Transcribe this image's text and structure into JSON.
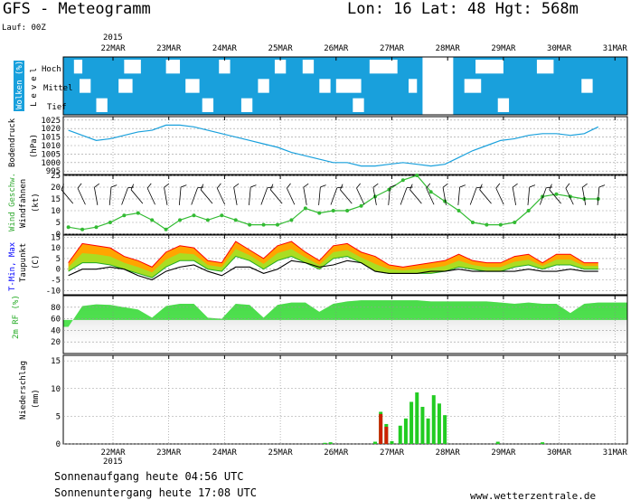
{
  "header": {
    "title": "GFS - Meteogramm",
    "location": "Lon: 16 Lat: 48 Hgt: 568m",
    "run": "Lauf: 00Z",
    "year": "2015"
  },
  "dates": [
    "22MAR",
    "23MAR",
    "24MAR",
    "25MAR",
    "26MAR",
    "27MAR",
    "28MAR",
    "29MAR",
    "30MAR",
    "31MAR"
  ],
  "footer": {
    "sunrise": "Sonnenaufgang heute 04:56 UTC",
    "sunset": "Sonnenuntergang heute 17:08 UTC",
    "website": "www.wetterzentrale.de",
    "year": "2015"
  },
  "colors": {
    "cloud_blue": "#19a0dc",
    "pressure_line": "#19a0dc",
    "wind_green": "#33bb33",
    "humidity_green": "#33dd33",
    "precip_green": "#22cc22",
    "precip_red": "#cc2200",
    "temp_orange": "#ffa500",
    "temp_red": "#ff0000",
    "temp_yellowgreen": "#aadd22",
    "label_blue": "#0000ff"
  },
  "chart_data": [
    {
      "type": "heatmap",
      "panel": "clouds",
      "ylabel": "Wolken (%)",
      "side_label": "Level",
      "rows": [
        "Hoch",
        "Mittel",
        "Tief"
      ]
    },
    {
      "type": "line",
      "panel": "pressure",
      "ylabel": "Bodendruck",
      "unit": "(hPa)",
      "ylim": [
        995,
        1025
      ],
      "ticks": [
        "1025",
        "1020",
        "1015",
        "1010",
        "1005",
        "1000",
        "995"
      ],
      "x_days": [
        0,
        0.25,
        0.5,
        0.75,
        1,
        1.25,
        1.5,
        1.75,
        2,
        2.25,
        2.5,
        2.75,
        3,
        3.25,
        3.5,
        3.75,
        4,
        4.25,
        4.5,
        4.75,
        5,
        5.25,
        5.5,
        5.75,
        6,
        6.25,
        6.5,
        6.75,
        7,
        7.25,
        7.5,
        7.75,
        8,
        8.25,
        8.5,
        8.75,
        9,
        9.25,
        9.5
      ],
      "values": [
        1019,
        1016,
        1013,
        1014,
        1016,
        1018,
        1019,
        1022,
        1022,
        1021,
        1019,
        1017,
        1015,
        1013,
        1011,
        1009,
        1006,
        1004,
        1002,
        1000,
        1000,
        998,
        998,
        999,
        1000,
        999,
        998,
        999,
        1003,
        1007,
        1010,
        1013,
        1014,
        1016,
        1017,
        1017,
        1016,
        1017,
        1021
      ]
    },
    {
      "type": "line",
      "panel": "wind",
      "ylabel": "Wind Geschw.",
      "ylabel2": "Windfahnen",
      "unit": "(kt)",
      "ylim": [
        0,
        25
      ],
      "ticks": [
        "25",
        "20",
        "15",
        "10",
        "5",
        "0"
      ],
      "x_days": [
        0,
        0.25,
        0.5,
        0.75,
        1,
        1.25,
        1.5,
        1.75,
        2,
        2.25,
        2.5,
        2.75,
        3,
        3.25,
        3.5,
        3.75,
        4,
        4.25,
        4.5,
        4.75,
        5,
        5.25,
        5.5,
        5.75,
        6,
        6.25,
        6.5,
        6.75,
        7,
        7.25,
        7.5,
        7.75,
        8,
        8.25,
        8.5,
        8.75,
        9,
        9.25,
        9.5
      ],
      "values": [
        3,
        2,
        3,
        5,
        8,
        9,
        6,
        2,
        6,
        8,
        6,
        8,
        6,
        4,
        4,
        4,
        6,
        11,
        9,
        10,
        10,
        12,
        16,
        19,
        23,
        25,
        18,
        14,
        10,
        5,
        4,
        4,
        5,
        10,
        16,
        17,
        16,
        15,
        15
      ]
    },
    {
      "type": "area",
      "panel": "temperature",
      "ylabel": "T-Min, Max",
      "ylabel2": "Taupunkt",
      "unit": "(C)",
      "ylim": [
        -10,
        15
      ],
      "ticks": [
        "15",
        "10",
        "5",
        "0",
        "-5",
        "-10"
      ],
      "x_days": [
        0,
        0.25,
        0.5,
        0.75,
        1,
        1.25,
        1.5,
        1.75,
        2,
        2.25,
        2.5,
        2.75,
        3,
        3.25,
        3.5,
        3.75,
        4,
        4.25,
        4.5,
        4.75,
        5,
        5.25,
        5.5,
        5.75,
        6,
        6.25,
        6.5,
        6.75,
        7,
        7.25,
        7.5,
        7.75,
        8,
        8.25,
        8.5,
        8.75,
        9,
        9.25,
        9.5
      ],
      "series": [
        {
          "name": "T-Max",
          "values": [
            3,
            12,
            11,
            10,
            6,
            4,
            1,
            8,
            11,
            10,
            4,
            3,
            13,
            9,
            5,
            11,
            13,
            8,
            4,
            11,
            12,
            8,
            6,
            2,
            1,
            2,
            3,
            4,
            7,
            4,
            3,
            3,
            6,
            7,
            3,
            7,
            7,
            3,
            3
          ]
        },
        {
          "name": "T-Min",
          "values": [
            -1,
            3,
            3,
            2,
            0,
            -2,
            -4,
            1,
            4,
            4,
            0,
            -1,
            6,
            4,
            0,
            4,
            6,
            3,
            0,
            5,
            6,
            3,
            -1,
            -2,
            -2,
            -2,
            -2,
            -1,
            1,
            0,
            -1,
            -1,
            1,
            2,
            0,
            2,
            2,
            0,
            0
          ]
        },
        {
          "name": "Taupunkt",
          "values": [
            -3,
            0,
            0,
            1,
            0,
            -3,
            -5,
            -1,
            1,
            2,
            -1,
            -3,
            1,
            1,
            -2,
            0,
            4,
            3,
            1,
            2,
            4,
            3,
            -1,
            -2,
            -2,
            -2,
            -1,
            -1,
            0,
            -1,
            -1,
            -1,
            -1,
            0,
            -1,
            -1,
            0,
            -1,
            -1
          ]
        }
      ]
    },
    {
      "type": "area",
      "panel": "humidity",
      "ylabel": "2m RF (%)",
      "ylim": [
        0,
        100
      ],
      "ticks": [
        "80",
        "60",
        "40",
        "20"
      ],
      "x_days": [
        0,
        0.25,
        0.5,
        0.75,
        1,
        1.25,
        1.5,
        1.75,
        2,
        2.25,
        2.5,
        2.75,
        3,
        3.25,
        3.5,
        3.75,
        4,
        4.25,
        4.5,
        4.75,
        5,
        5.25,
        5.5,
        5.75,
        6,
        6.25,
        6.5,
        6.75,
        7,
        7.25,
        7.5,
        7.75,
        8,
        8.25,
        8.5,
        8.75,
        9,
        9.25,
        9.5
      ],
      "values": [
        46,
        82,
        85,
        84,
        80,
        76,
        62,
        82,
        86,
        86,
        62,
        60,
        86,
        84,
        62,
        84,
        88,
        88,
        72,
        86,
        90,
        92,
        92,
        92,
        92,
        92,
        90,
        90,
        90,
        90,
        90,
        88,
        86,
        88,
        86,
        86,
        70,
        86,
        88
      ]
    },
    {
      "type": "bar",
      "panel": "precipitation",
      "ylabel": "Niederschlag",
      "unit": "(mm)",
      "ylim": [
        0,
        15
      ],
      "ticks": [
        "15",
        "10",
        "5",
        "0"
      ],
      "x_days": [
        4.6,
        4.7,
        5.5,
        5.6,
        5.7,
        5.8,
        5.95,
        6.05,
        6.15,
        6.25,
        6.35,
        6.45,
        6.55,
        6.65,
        6.75,
        7.7,
        8.5
      ],
      "values": [
        0.2,
        0.3,
        0.4,
        5.8,
        3.6,
        0.5,
        3.3,
        4.6,
        7.6,
        9.3,
        6.7,
        4.6,
        8.8,
        7.3,
        5.2,
        0.4,
        0.3
      ],
      "red_share": [
        0,
        0,
        0,
        5.4,
        3.1,
        0,
        0,
        0,
        0,
        0,
        0,
        0,
        0,
        0,
        0,
        0,
        0
      ]
    }
  ]
}
